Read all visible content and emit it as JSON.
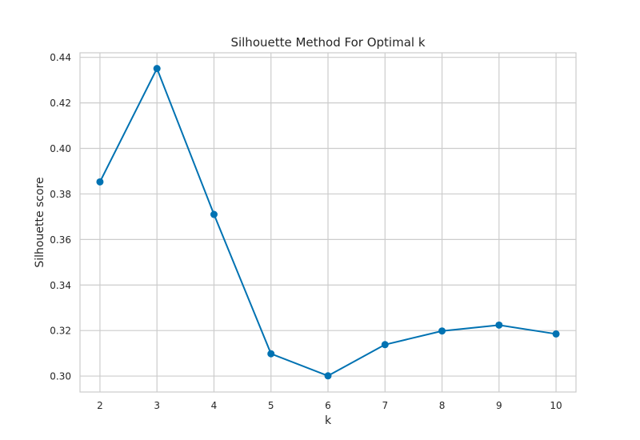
{
  "chart_data": {
    "type": "line",
    "title": "Silhouette Method For Optimal k",
    "xlabel": "k",
    "ylabel": "Silhouette score",
    "x": [
      2,
      3,
      4,
      5,
      6,
      7,
      8,
      9,
      10
    ],
    "series": [
      {
        "values": [
          0.3853,
          0.4351,
          0.371,
          0.3098,
          0.3001,
          0.3138,
          0.3198,
          0.3224,
          0.3185
        ]
      }
    ],
    "xlim": [
      1.65,
      10.35
    ],
    "ylim": [
      0.293,
      0.442
    ],
    "xticks": [
      "2",
      "3",
      "4",
      "5",
      "6",
      "7",
      "8",
      "9",
      "10"
    ],
    "yticks": [
      "0.30",
      "0.32",
      "0.34",
      "0.36",
      "0.38",
      "0.40",
      "0.42",
      "0.44"
    ],
    "grid": true,
    "line_color": "#0072B2",
    "grid_color": "#CCCCCC"
  }
}
